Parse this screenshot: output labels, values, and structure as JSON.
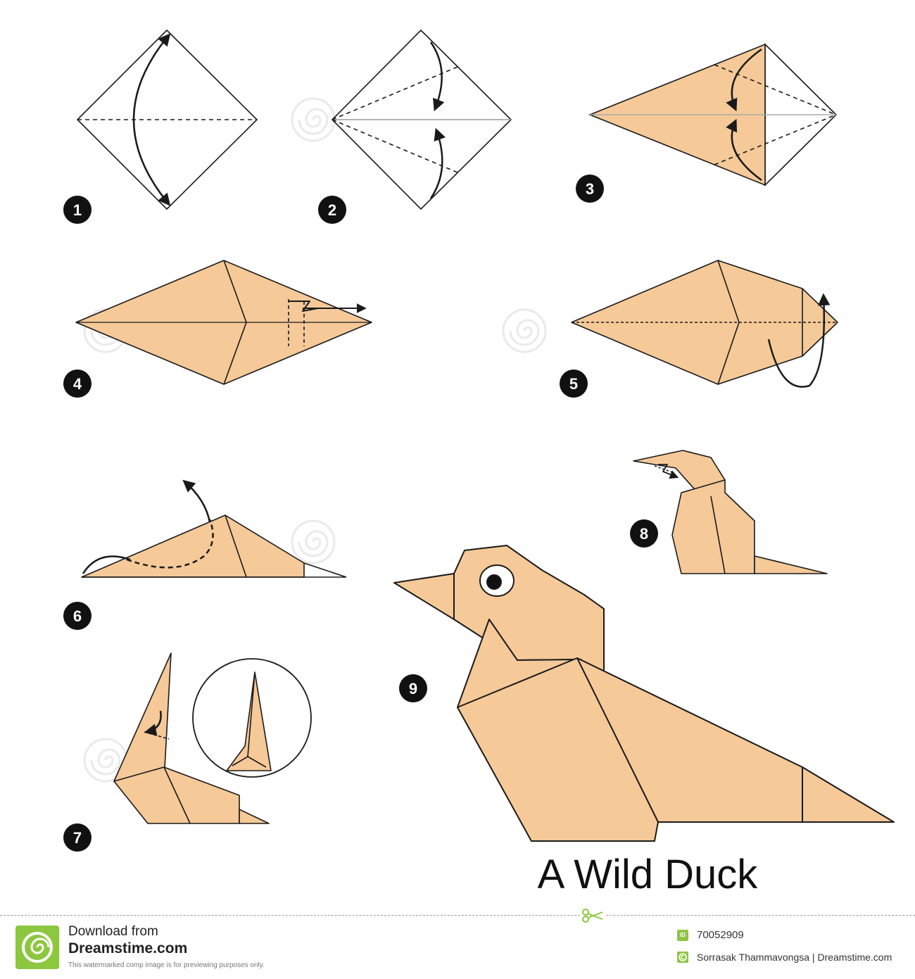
{
  "colors": {
    "paper": "#f5c998",
    "line": "#1a1a1a",
    "badge": "#111111",
    "watermark": "#e6e6e6",
    "footer_accent": "#8dc63f"
  },
  "steps": [
    "1",
    "2",
    "3",
    "4",
    "5",
    "6",
    "7",
    "8",
    "9"
  ],
  "title": "A Wild Duck",
  "watermark": "dreamstime",
  "footer": {
    "download_line1": "Download from",
    "download_line2": "Dreamstime.com",
    "preview_note": "This watermarked comp image is for previewing purposes only.",
    "id_badge": "ID",
    "image_id": "70052909",
    "credit": "Sorrasak Thammavongsa | Dreamstime.com"
  }
}
